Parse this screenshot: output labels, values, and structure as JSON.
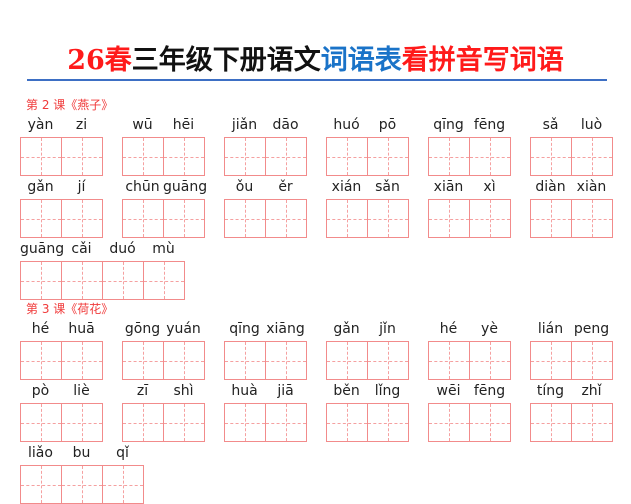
{
  "title": {
    "segments": [
      {
        "text": "26春",
        "color": "#ff1a1a"
      },
      {
        "text": "三年级下册语文",
        "color": "#111111"
      },
      {
        "text": "词语表",
        "color": "#1a73c8"
      },
      {
        "text": "看拼音写词语",
        "color": "#ff1a1a"
      }
    ]
  },
  "lessons": [
    {
      "label": "第 2 课《燕子》",
      "rows": [
        [
          [
            "yàn",
            "zi"
          ],
          [
            "wū",
            "hēi"
          ],
          [
            "jiǎn",
            "dāo"
          ],
          [
            "huó",
            "pō"
          ],
          [
            "qīng",
            "fēng"
          ],
          [
            "sǎ",
            "luò"
          ]
        ],
        [
          [
            "gǎn",
            "jí"
          ],
          [
            "chūn",
            "guāng"
          ],
          [
            "ǒu",
            "ěr"
          ],
          [
            "xián",
            "sǎn"
          ],
          [
            "xiān",
            "xì"
          ],
          [
            "diàn",
            "xiàn"
          ]
        ],
        [
          [
            "guāng",
            "cǎi",
            "duó",
            "mù"
          ]
        ]
      ]
    },
    {
      "label": "第 3 课《荷花》",
      "rows": [
        [
          [
            "hé",
            "huā"
          ],
          [
            "gōng",
            "yuán"
          ],
          [
            "qīng",
            "xiāng"
          ],
          [
            "gǎn",
            "jǐn"
          ],
          [
            "hé",
            "yè"
          ],
          [
            "lián",
            "peng"
          ]
        ],
        [
          [
            "pò",
            "liè"
          ],
          [
            "zī",
            "shì"
          ],
          [
            "huà",
            "jiā"
          ],
          [
            "běn",
            "lǐng"
          ],
          [
            "wēi",
            "fēng"
          ],
          [
            "tíng",
            "zhǐ"
          ]
        ],
        [
          [
            "liǎo",
            "bu",
            "qǐ"
          ]
        ]
      ]
    }
  ]
}
